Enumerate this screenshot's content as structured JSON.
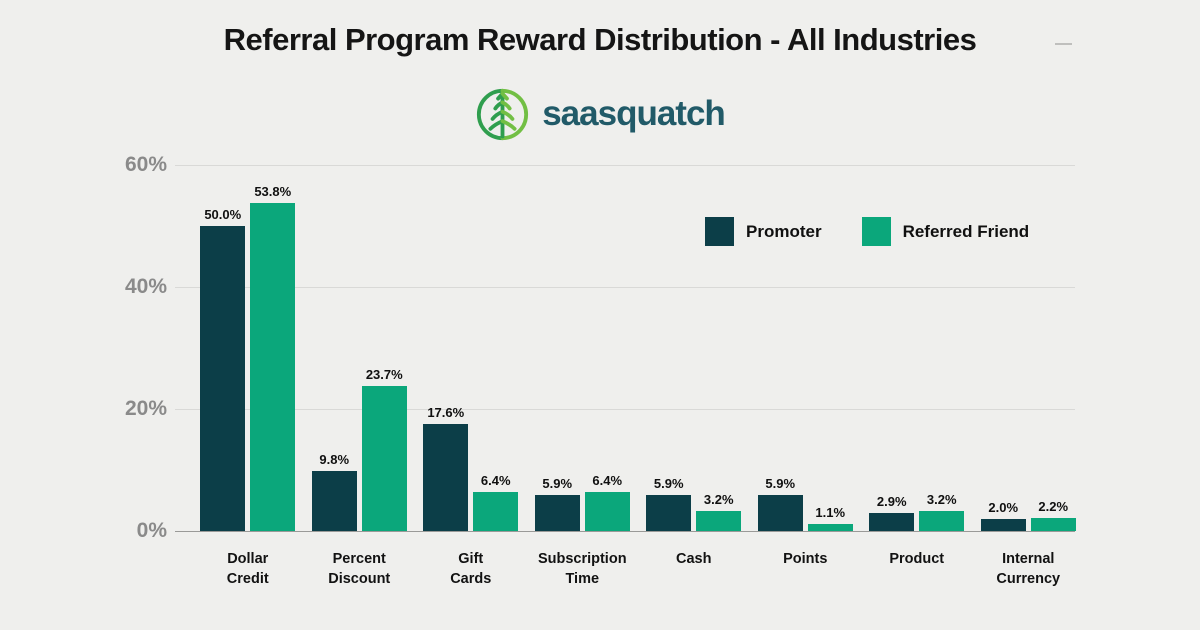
{
  "header": {
    "title": "Referral Program Reward Distribution - All Industries",
    "logo_text": "saasquatch"
  },
  "chart_data": {
    "type": "bar",
    "title": "Referral Program Reward Distribution - All Industries",
    "categories": [
      "Dollar\nCredit",
      "Percent\nDiscount",
      "Gift\nCards",
      "Subscription\nTime",
      "Cash",
      "Points",
      "Product",
      "Internal\nCurrency"
    ],
    "series": [
      {
        "name": "Promoter",
        "color": "#0c3e48",
        "values": [
          50.0,
          9.8,
          17.6,
          5.9,
          5.9,
          5.9,
          2.9,
          2.0
        ]
      },
      {
        "name": "Referred Friend",
        "color": "#0ba77b",
        "values": [
          53.8,
          23.7,
          6.4,
          6.4,
          3.2,
          1.1,
          3.2,
          2.2
        ]
      }
    ],
    "value_label_suffix": "%",
    "xlabel": "",
    "ylabel": "",
    "ylim": [
      0,
      60
    ],
    "yticks": [
      {
        "label": "0%",
        "value": 0
      },
      {
        "label": "20%",
        "value": 20
      },
      {
        "label": "40%",
        "value": 40
      },
      {
        "label": "60%",
        "value": 60
      }
    ],
    "grid": true,
    "legend_position": "inside-upper-right"
  },
  "colors": {
    "background": "#efefed",
    "promoter_bar": "#0c3e48",
    "referred_friend_bar": "#0ba77b",
    "axis_text": "#8a8a8a",
    "gridline": "#d9d9d7",
    "baseline": "#9a9a98",
    "title_text": "#151515",
    "logo_text": "#215a68",
    "logo_green_dark": "#2f9e4e",
    "logo_green_light": "#72bf44"
  }
}
